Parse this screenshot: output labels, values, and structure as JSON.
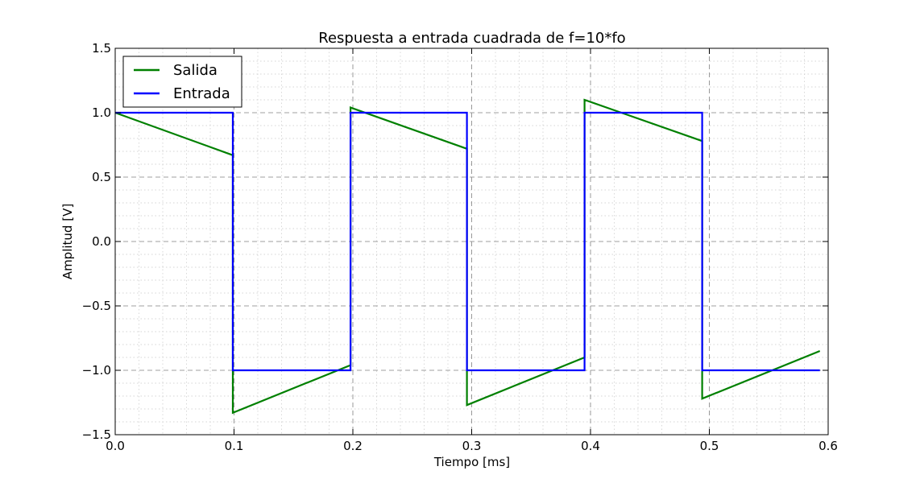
{
  "chart_data": {
    "type": "line",
    "title": "Respuesta a entrada cuadrada de f=10*fo",
    "xlabel": "Tiempo [ms]",
    "ylabel": "Amplitud [V]",
    "xlim": [
      0.0,
      0.6
    ],
    "ylim": [
      -1.5,
      1.5
    ],
    "x_ticks": [
      "0.0",
      "0.1",
      "0.2",
      "0.3",
      "0.4",
      "0.5",
      "0.6"
    ],
    "y_ticks": [
      "1.5",
      "1.0",
      "0.5",
      "0.0",
      "−0.5",
      "−1.0",
      "−1.5"
    ],
    "grid": true,
    "legend": "top-left",
    "series": [
      {
        "name": "Salida",
        "color": "#008000",
        "x": [
          0.0,
          0.099,
          0.099,
          0.198,
          0.198,
          0.296,
          0.296,
          0.395,
          0.395,
          0.494,
          0.494,
          0.593
        ],
        "y": [
          1.0,
          0.67,
          -1.33,
          -0.96,
          1.04,
          0.72,
          -1.27,
          -0.9,
          1.1,
          0.78,
          -1.22,
          -0.85
        ]
      },
      {
        "name": "Entrada",
        "color": "#0000ff",
        "x": [
          0.0,
          0.099,
          0.099,
          0.198,
          0.198,
          0.296,
          0.296,
          0.395,
          0.395,
          0.494,
          0.494,
          0.593
        ],
        "y": [
          1.0,
          1.0,
          -1.0,
          -1.0,
          1.0,
          1.0,
          -1.0,
          -1.0,
          1.0,
          1.0,
          -1.0,
          -1.0
        ]
      }
    ]
  }
}
